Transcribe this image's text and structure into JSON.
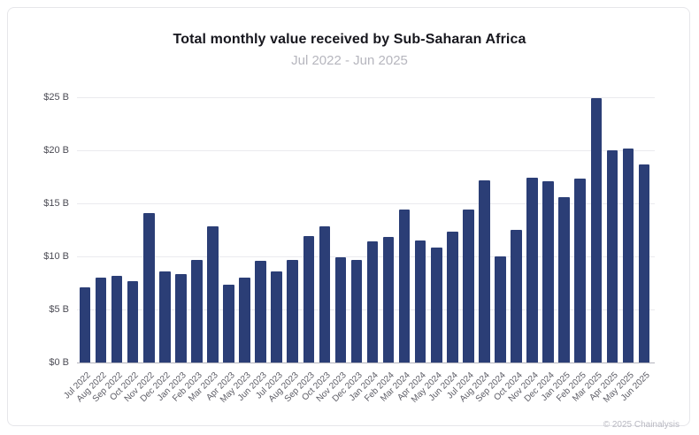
{
  "header": {
    "title": "Total monthly value received by Sub-Saharan Africa",
    "subtitle": "Jul 2022 - Jun 2025"
  },
  "chart_data": {
    "type": "bar",
    "title": "Total monthly value received by Sub-Saharan Africa",
    "subtitle": "Jul 2022 - Jun 2025",
    "categories": [
      "Jul 2022",
      "Aug 2022",
      "Sep 2022",
      "Oct 2022",
      "Nov 2022",
      "Dec 2022",
      "Jan 2023",
      "Feb 2023",
      "Mar 2023",
      "Apr 2023",
      "May 2023",
      "Jun 2023",
      "Jul 2023",
      "Aug 2023",
      "Sep 2023",
      "Oct 2023",
      "Nov 2023",
      "Dec 2023",
      "Jan 2024",
      "Feb 2024",
      "Mar 2024",
      "Apr 2024",
      "May 2024",
      "Jun 2024",
      "Jul 2024",
      "Aug 2024",
      "Sep 2024",
      "Oct 2024",
      "Nov 2024",
      "Dec 2024",
      "Jan 2025",
      "Feb 2025",
      "Mar 2025",
      "Apr 2025",
      "May 2025",
      "Jun 2025"
    ],
    "values": [
      7.1,
      8.0,
      8.2,
      7.7,
      14.1,
      8.6,
      8.3,
      9.7,
      12.8,
      7.3,
      8.0,
      9.6,
      8.6,
      9.7,
      11.9,
      12.8,
      9.9,
      9.7,
      11.4,
      11.8,
      14.4,
      11.5,
      10.8,
      12.3,
      14.4,
      17.2,
      10.0,
      12.5,
      17.4,
      17.1,
      15.6,
      17.3,
      24.9,
      20.0,
      20.2,
      18.7
    ],
    "unit": "USD billions",
    "xlabel": "",
    "ylabel": "",
    "ylim": [
      0,
      25
    ],
    "y_ticks": [
      0,
      5,
      10,
      15,
      20,
      25
    ],
    "y_tick_labels": [
      "$0 B",
      "$5 B",
      "$10 B",
      "$15 B",
      "$20 B",
      "$25 B"
    ],
    "x_label_rotation": -45,
    "grid": "horizontal",
    "legend": "none",
    "bar_color": "#2b3e76"
  },
  "footer": {
    "copyright": "© 2025 Chainalysis"
  },
  "colors": {
    "accent_bar": "#2b3e76",
    "title_text": "#17171e",
    "subtitle_text": "#b6b6be",
    "y_axis_text": "#4c4c55",
    "x_axis_text": "#5c5c65",
    "gridline": "#eaeaee",
    "baseline": "#b3b3bc",
    "card_border": "#e6e6ea",
    "background": "#ffffff"
  }
}
